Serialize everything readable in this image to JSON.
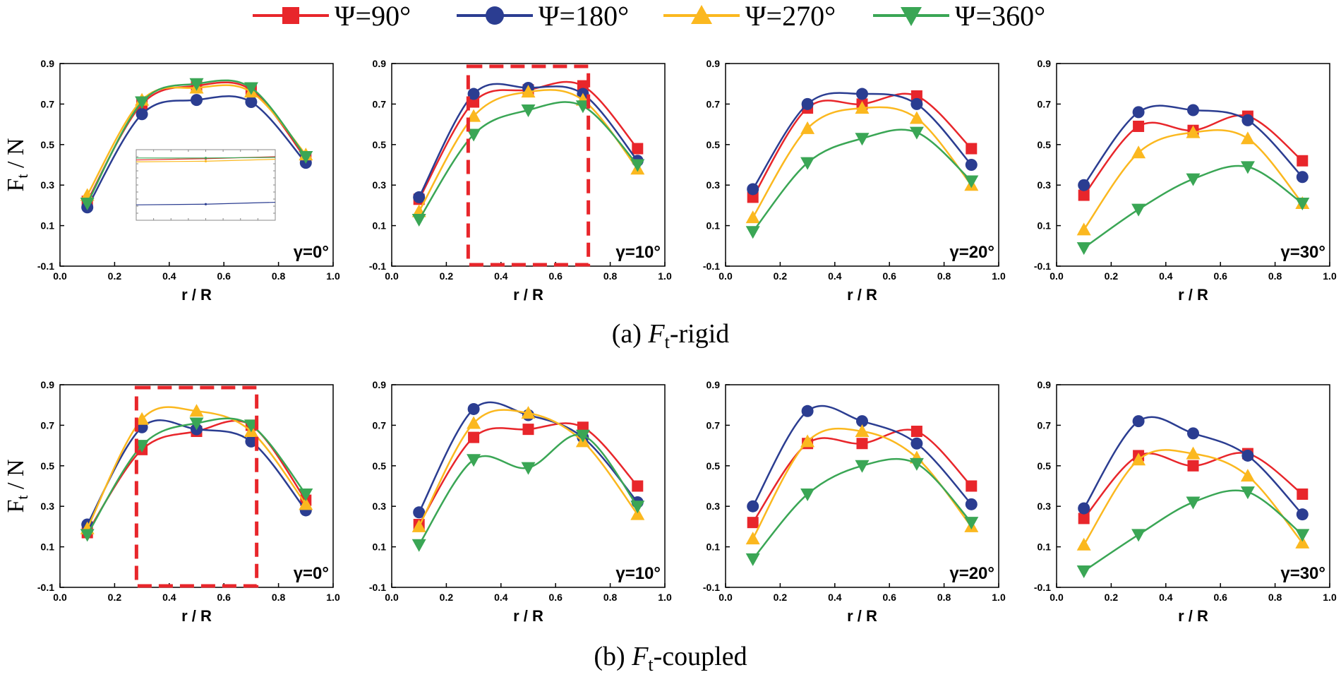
{
  "legend": [
    {
      "label": "Ψ=90°",
      "color": "#e8262b",
      "marker": "square"
    },
    {
      "label": "Ψ=180°",
      "color": "#2b3d91",
      "marker": "circle"
    },
    {
      "label": "Ψ=270°",
      "color": "#fbb81f",
      "marker": "triangle-up"
    },
    {
      "label": "Ψ=360°",
      "color": "#3aa655",
      "marker": "triangle-down"
    }
  ],
  "captions": {
    "a": {
      "prefix": "(a) ",
      "var": "F",
      "sub": "t",
      "suffix": "-rigid"
    },
    "b": {
      "prefix": "(b) ",
      "var": "F",
      "sub": "t",
      "suffix": "-coupled"
    }
  },
  "ylabel": {
    "main": "F",
    "sub": "t",
    "rest": " / N"
  },
  "chart_data": [
    {
      "type": "line",
      "id": "a1",
      "row": "rigid",
      "annotation": "γ=0°",
      "xlabel": "r / R",
      "ylabel": "Ft / N",
      "xlim": [
        0.0,
        1.0
      ],
      "ylim": [
        -0.1,
        0.9
      ],
      "xticks": [
        "0.0",
        "0.2",
        "0.4",
        "0.6",
        "0.8",
        "1.0"
      ],
      "yticks": [
        "-0.1",
        "0.1",
        "0.3",
        "0.5",
        "0.7",
        "0.9"
      ],
      "x": [
        0.1,
        0.3,
        0.5,
        0.7,
        0.9
      ],
      "series": [
        {
          "name": "Ψ=90°",
          "values": [
            0.22,
            0.7,
            0.79,
            0.77,
            0.43
          ]
        },
        {
          "name": "Ψ=180°",
          "values": [
            0.19,
            0.65,
            0.72,
            0.71,
            0.41
          ]
        },
        {
          "name": "Ψ=270°",
          "values": [
            0.25,
            0.72,
            0.78,
            0.76,
            0.45
          ]
        },
        {
          "name": "Ψ=360°",
          "values": [
            0.21,
            0.71,
            0.8,
            0.78,
            0.44
          ]
        }
      ],
      "has_inset": true
    },
    {
      "type": "line",
      "id": "a2",
      "row": "rigid",
      "annotation": "γ=10°",
      "xlabel": "r / R",
      "ylabel": "Ft / N",
      "xlim": [
        0.0,
        1.0
      ],
      "ylim": [
        -0.1,
        0.9
      ],
      "xticks": [
        "0.0",
        "0.2",
        "0.4",
        "0.6",
        "0.8",
        "1.0"
      ],
      "yticks": [
        "-0.1",
        "0.1",
        "0.3",
        "0.5",
        "0.7",
        "0.9"
      ],
      "x": [
        0.1,
        0.3,
        0.5,
        0.7,
        0.9
      ],
      "series": [
        {
          "name": "Ψ=90°",
          "values": [
            0.23,
            0.71,
            0.77,
            0.79,
            0.48
          ]
        },
        {
          "name": "Ψ=180°",
          "values": [
            0.24,
            0.75,
            0.78,
            0.75,
            0.42
          ]
        },
        {
          "name": "Ψ=270°",
          "values": [
            0.17,
            0.64,
            0.76,
            0.72,
            0.38
          ]
        },
        {
          "name": "Ψ=360°",
          "values": [
            0.13,
            0.55,
            0.67,
            0.69,
            0.4
          ]
        }
      ],
      "highlight_box": [
        0.28,
        0.72
      ]
    },
    {
      "type": "line",
      "id": "a3",
      "row": "rigid",
      "annotation": "γ=20°",
      "xlabel": "r / R",
      "ylabel": "Ft / N",
      "xlim": [
        0.0,
        1.0
      ],
      "ylim": [
        -0.1,
        0.9
      ],
      "xticks": [
        "0.0",
        "0.2",
        "0.4",
        "0.6",
        "0.8",
        "1.0"
      ],
      "yticks": [
        "-0.1",
        "0.1",
        "0.3",
        "0.5",
        "0.7",
        "0.9"
      ],
      "x": [
        0.1,
        0.3,
        0.5,
        0.7,
        0.9
      ],
      "series": [
        {
          "name": "Ψ=90°",
          "values": [
            0.24,
            0.68,
            0.7,
            0.74,
            0.48
          ]
        },
        {
          "name": "Ψ=180°",
          "values": [
            0.28,
            0.7,
            0.75,
            0.7,
            0.4
          ]
        },
        {
          "name": "Ψ=270°",
          "values": [
            0.14,
            0.58,
            0.68,
            0.63,
            0.3
          ]
        },
        {
          "name": "Ψ=360°",
          "values": [
            0.07,
            0.41,
            0.53,
            0.56,
            0.32
          ]
        }
      ]
    },
    {
      "type": "line",
      "id": "a4",
      "row": "rigid",
      "annotation": "γ=30°",
      "xlabel": "r / R",
      "ylabel": "Ft / N",
      "xlim": [
        0.0,
        1.0
      ],
      "ylim": [
        -0.1,
        0.9
      ],
      "xticks": [
        "0.0",
        "0.2",
        "0.4",
        "0.6",
        "0.8",
        "1.0"
      ],
      "yticks": [
        "-0.1",
        "0.1",
        "0.3",
        "0.5",
        "0.7",
        "0.9"
      ],
      "x": [
        0.1,
        0.3,
        0.5,
        0.7,
        0.9
      ],
      "series": [
        {
          "name": "Ψ=90°",
          "values": [
            0.25,
            0.59,
            0.57,
            0.64,
            0.42
          ]
        },
        {
          "name": "Ψ=180°",
          "values": [
            0.3,
            0.66,
            0.67,
            0.62,
            0.34
          ]
        },
        {
          "name": "Ψ=270°",
          "values": [
            0.08,
            0.46,
            0.56,
            0.53,
            0.21
          ]
        },
        {
          "name": "Ψ=360°",
          "values": [
            -0.01,
            0.18,
            0.33,
            0.39,
            0.21
          ]
        }
      ]
    },
    {
      "type": "line",
      "id": "b1",
      "row": "coupled",
      "annotation": "γ=0°",
      "xlabel": "r / R",
      "ylabel": "Ft / N",
      "xlim": [
        0.0,
        1.0
      ],
      "ylim": [
        -0.1,
        0.9
      ],
      "xticks": [
        "0.0",
        "0.2",
        "0.4",
        "0.6",
        "0.8",
        "1.0"
      ],
      "yticks": [
        "-0.1",
        "0.1",
        "0.3",
        "0.5",
        "0.7",
        "0.9"
      ],
      "x": [
        0.1,
        0.3,
        0.5,
        0.7,
        0.9
      ],
      "series": [
        {
          "name": "Ψ=90°",
          "values": [
            0.17,
            0.58,
            0.67,
            0.7,
            0.33
          ]
        },
        {
          "name": "Ψ=180°",
          "values": [
            0.21,
            0.69,
            0.68,
            0.62,
            0.28
          ]
        },
        {
          "name": "Ψ=270°",
          "values": [
            0.19,
            0.73,
            0.77,
            0.67,
            0.31
          ]
        },
        {
          "name": "Ψ=360°",
          "values": [
            0.16,
            0.6,
            0.71,
            0.7,
            0.36
          ]
        }
      ],
      "highlight_box": [
        0.28,
        0.72
      ]
    },
    {
      "type": "line",
      "id": "b2",
      "row": "coupled",
      "annotation": "γ=10°",
      "xlabel": "r / R",
      "ylabel": "Ft / N",
      "xlim": [
        0.0,
        1.0
      ],
      "ylim": [
        -0.1,
        0.9
      ],
      "xticks": [
        "0.0",
        "0.2",
        "0.4",
        "0.6",
        "0.8",
        "1.0"
      ],
      "yticks": [
        "-0.1",
        "0.1",
        "0.3",
        "0.5",
        "0.7",
        "0.9"
      ],
      "x": [
        0.1,
        0.3,
        0.5,
        0.7,
        0.9
      ],
      "series": [
        {
          "name": "Ψ=90°",
          "values": [
            0.21,
            0.64,
            0.68,
            0.69,
            0.4
          ]
        },
        {
          "name": "Ψ=180°",
          "values": [
            0.27,
            0.78,
            0.75,
            0.64,
            0.32
          ]
        },
        {
          "name": "Ψ=270°",
          "values": [
            0.2,
            0.71,
            0.76,
            0.62,
            0.26
          ]
        },
        {
          "name": "Ψ=360°",
          "values": [
            0.11,
            0.53,
            0.49,
            0.65,
            0.3
          ]
        }
      ]
    },
    {
      "type": "line",
      "id": "b3",
      "row": "coupled",
      "annotation": "γ=20°",
      "xlabel": "r / R",
      "ylabel": "Ft / N",
      "xlim": [
        0.0,
        1.0
      ],
      "ylim": [
        -0.1,
        0.9
      ],
      "xticks": [
        "0.0",
        "0.2",
        "0.4",
        "0.6",
        "0.8",
        "1.0"
      ],
      "yticks": [
        "-0.1",
        "0.1",
        "0.3",
        "0.5",
        "0.7",
        "0.9"
      ],
      "x": [
        0.1,
        0.3,
        0.5,
        0.7,
        0.9
      ],
      "series": [
        {
          "name": "Ψ=90°",
          "values": [
            0.22,
            0.61,
            0.61,
            0.67,
            0.4
          ]
        },
        {
          "name": "Ψ=180°",
          "values": [
            0.3,
            0.77,
            0.72,
            0.61,
            0.31
          ]
        },
        {
          "name": "Ψ=270°",
          "values": [
            0.14,
            0.62,
            0.67,
            0.54,
            0.2
          ]
        },
        {
          "name": "Ψ=360°",
          "values": [
            0.04,
            0.36,
            0.5,
            0.51,
            0.22
          ]
        }
      ]
    },
    {
      "type": "line",
      "id": "b4",
      "row": "coupled",
      "annotation": "γ=30°",
      "xlabel": "r / R",
      "ylabel": "Ft / N",
      "xlim": [
        0.0,
        1.0
      ],
      "ylim": [
        -0.1,
        0.9
      ],
      "xticks": [
        "0.0",
        "0.2",
        "0.4",
        "0.6",
        "0.8",
        "1.0"
      ],
      "yticks": [
        "-0.1",
        "0.1",
        "0.3",
        "0.5",
        "0.7",
        "0.9"
      ],
      "x": [
        0.1,
        0.3,
        0.5,
        0.7,
        0.9
      ],
      "series": [
        {
          "name": "Ψ=90°",
          "values": [
            0.24,
            0.55,
            0.5,
            0.56,
            0.36
          ]
        },
        {
          "name": "Ψ=180°",
          "values": [
            0.29,
            0.72,
            0.66,
            0.55,
            0.26
          ]
        },
        {
          "name": "Ψ=270°",
          "values": [
            0.11,
            0.53,
            0.56,
            0.45,
            0.12
          ]
        },
        {
          "name": "Ψ=360°",
          "values": [
            -0.02,
            0.16,
            0.32,
            0.37,
            0.16
          ]
        }
      ]
    }
  ]
}
